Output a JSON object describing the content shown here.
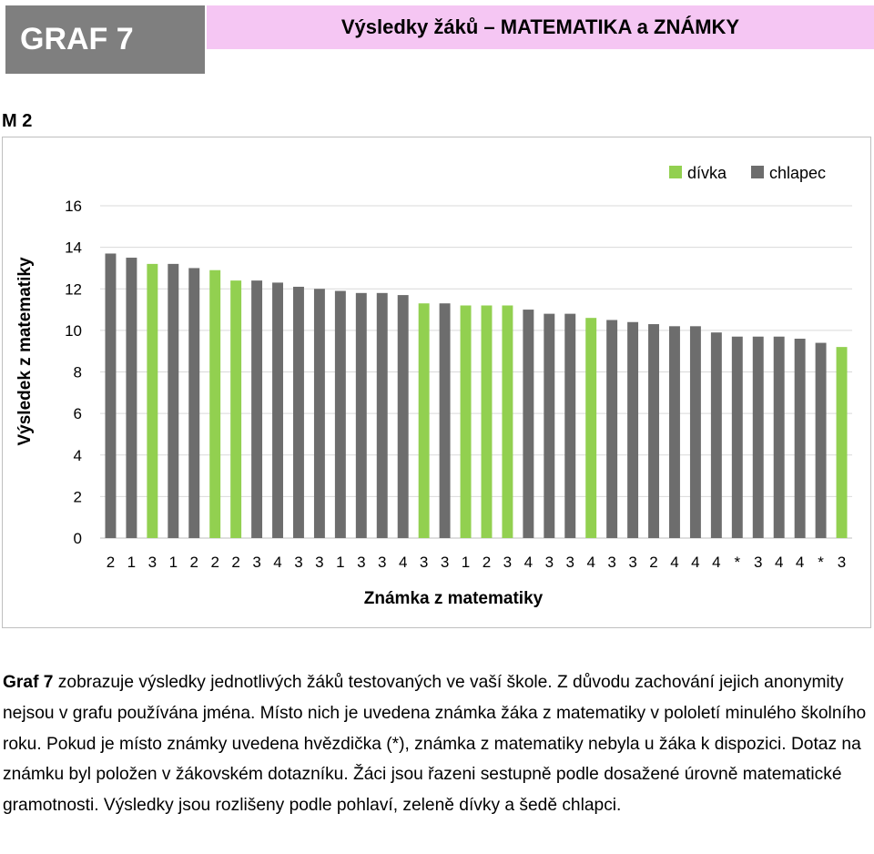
{
  "header": {
    "graf_label": "GRAF 7",
    "title": "Výsledky žáků – MATEMATIKA a ZNÁMKY"
  },
  "section_label": "M 2",
  "chart_data": {
    "type": "bar",
    "title": "",
    "xlabel": "Známka z matematiky",
    "ylabel": "Výsledek z matematiky",
    "ylim": [
      0,
      16
    ],
    "yticks": [
      0,
      2,
      4,
      6,
      8,
      10,
      12,
      14,
      16
    ],
    "grid": true,
    "legend_position": "top-right",
    "legend": [
      {
        "key": "girl",
        "label": "dívka",
        "color": "#92d050"
      },
      {
        "key": "boy",
        "label": "chlapec",
        "color": "#6d6d6d"
      }
    ],
    "categories": [
      "2",
      "1",
      "3",
      "1",
      "2",
      "2",
      "2",
      "3",
      "4",
      "3",
      "3",
      "1",
      "3",
      "3",
      "4",
      "3",
      "3",
      "1",
      "2",
      "3",
      "4",
      "3",
      "3",
      "4",
      "3",
      "3",
      "2",
      "4",
      "4",
      "4",
      "*",
      "3",
      "4",
      "4",
      "*",
      "3"
    ],
    "values": [
      13.7,
      13.5,
      13.2,
      13.2,
      13.0,
      12.9,
      12.4,
      12.4,
      12.3,
      12.1,
      12.0,
      11.9,
      11.8,
      11.8,
      11.7,
      11.3,
      11.3,
      11.2,
      11.2,
      11.2,
      11.0,
      10.8,
      10.8,
      10.6,
      10.5,
      10.4,
      10.3,
      10.2,
      10.2,
      9.9,
      9.7,
      9.7,
      9.7,
      9.6,
      9.4,
      9.2
    ],
    "gender": [
      "boy",
      "boy",
      "girl",
      "boy",
      "boy",
      "girl",
      "girl",
      "boy",
      "boy",
      "boy",
      "boy",
      "boy",
      "boy",
      "boy",
      "boy",
      "girl",
      "boy",
      "girl",
      "girl",
      "girl",
      "boy",
      "boy",
      "boy",
      "girl",
      "boy",
      "boy",
      "boy",
      "boy",
      "boy",
      "boy",
      "boy",
      "boy",
      "boy",
      "boy",
      "boy",
      "girl"
    ]
  },
  "caption": {
    "bold_lead": "Graf 7",
    "text": " zobrazuje výsledky jednotlivých žáků testovaných ve vaší škole. Z důvodu zachování jejich anonymity nejsou v grafu používána jména. Místo nich je uvedena známka žáka z matematiky v pololetí minulého školního roku. Pokud je místo známky uvedena hvězdička (*), známka z matematiky nebyla u žáka k dispozici. Dotaz na známku byl položen v žákovském dotazníku. Žáci jsou řazeni sestupně podle dosažené úrovně matematické gramotnosti. Výsledky jsou rozlišeny podle pohlaví, zeleně dívky a šedě chlapci."
  }
}
